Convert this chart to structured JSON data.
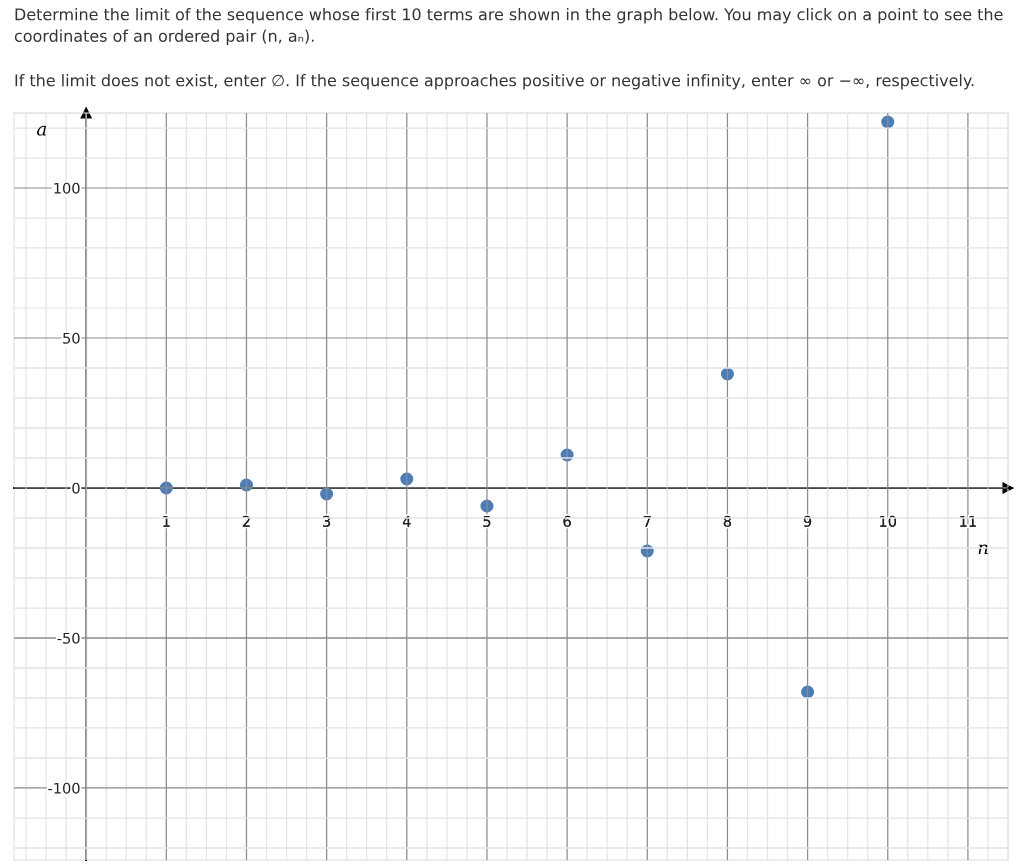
{
  "chart_data": {
    "type": "scatter",
    "title": "Determine the limit of the sequence whose first 10 terms are shown in the graph below. You may click on a point to see the coordinates of an ordered pair (n, aₙ).",
    "subtitle": "If the limit does not exist, enter ∅. If the sequence approaches positive or negative infinity, enter ∞ or −∞, respectively.",
    "xlabel": "n",
    "ylabel": "a",
    "x": [
      1,
      2,
      3,
      4,
      5,
      6,
      7,
      8,
      9,
      10
    ],
    "series": [
      {
        "color": "#4a7dba",
        "values": [
          0,
          1,
          -2,
          3,
          -6,
          11,
          -21,
          38,
          -68,
          122
        ]
      }
    ],
    "xlim": [
      -0.9,
      11.5
    ],
    "ylim": [
      -124,
      125
    ],
    "xticks": [
      1,
      2,
      3,
      4,
      5,
      6,
      7,
      8,
      9,
      10,
      11
    ],
    "yticks": [
      -100,
      -50,
      0,
      50,
      100
    ],
    "grid": true,
    "marker": "circle"
  }
}
